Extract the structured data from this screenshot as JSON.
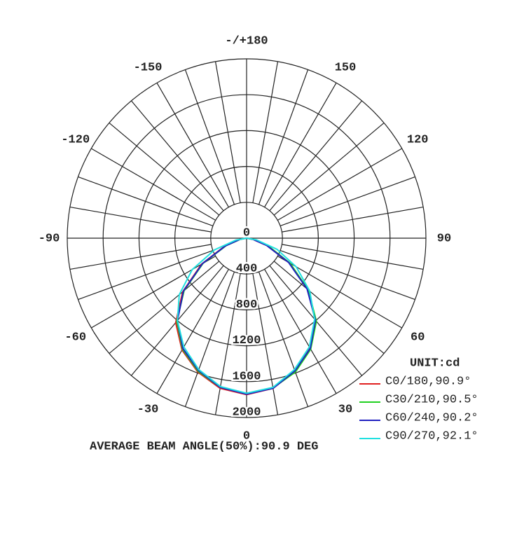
{
  "chart_data": {
    "type": "polar",
    "rlim": [
      0,
      2000
    ],
    "rticks": [
      0,
      400,
      800,
      1200,
      1600,
      2000
    ],
    "angle_ticks": [
      {
        "value": 180,
        "label": "-/+180"
      },
      150,
      120,
      90,
      60,
      30,
      0,
      -30,
      -60,
      -90,
      -120,
      -150
    ],
    "theta": [
      -90,
      -80,
      -70,
      -60,
      -50,
      -40,
      -30,
      -20,
      -10,
      0,
      10,
      20,
      30,
      40,
      50,
      60,
      70,
      80,
      90
    ],
    "unit_label": "UNIT:cd",
    "annotation": "AVERAGE BEAM ANGLE(50%):90.9 DEG",
    "series": [
      {
        "name": "C0/180,90.9°",
        "color": "#e02020",
        "values": [
          0,
          80,
          260,
          580,
          930,
          1230,
          1440,
          1590,
          1700,
          1745,
          1700,
          1580,
          1410,
          1190,
          890,
          550,
          240,
          70,
          0
        ]
      },
      {
        "name": "C30/210,90.5°",
        "color": "#20d020",
        "values": [
          0,
          70,
          240,
          560,
          910,
          1210,
          1430,
          1580,
          1690,
          1735,
          1695,
          1590,
          1430,
          1210,
          900,
          560,
          260,
          90,
          0
        ]
      },
      {
        "name": "C60/240,90.2°",
        "color": "#2020c0",
        "values": [
          0,
          75,
          250,
          570,
          920,
          1200,
          1420,
          1570,
          1690,
          1740,
          1700,
          1575,
          1420,
          1195,
          880,
          540,
          240,
          70,
          0
        ]
      },
      {
        "name": "C90/270,92.1°",
        "color": "#20e0e0",
        "values": [
          0,
          120,
          380,
          700,
          980,
          1200,
          1400,
          1560,
          1680,
          1730,
          1690,
          1560,
          1400,
          1180,
          920,
          640,
          360,
          110,
          0
        ]
      }
    ]
  }
}
